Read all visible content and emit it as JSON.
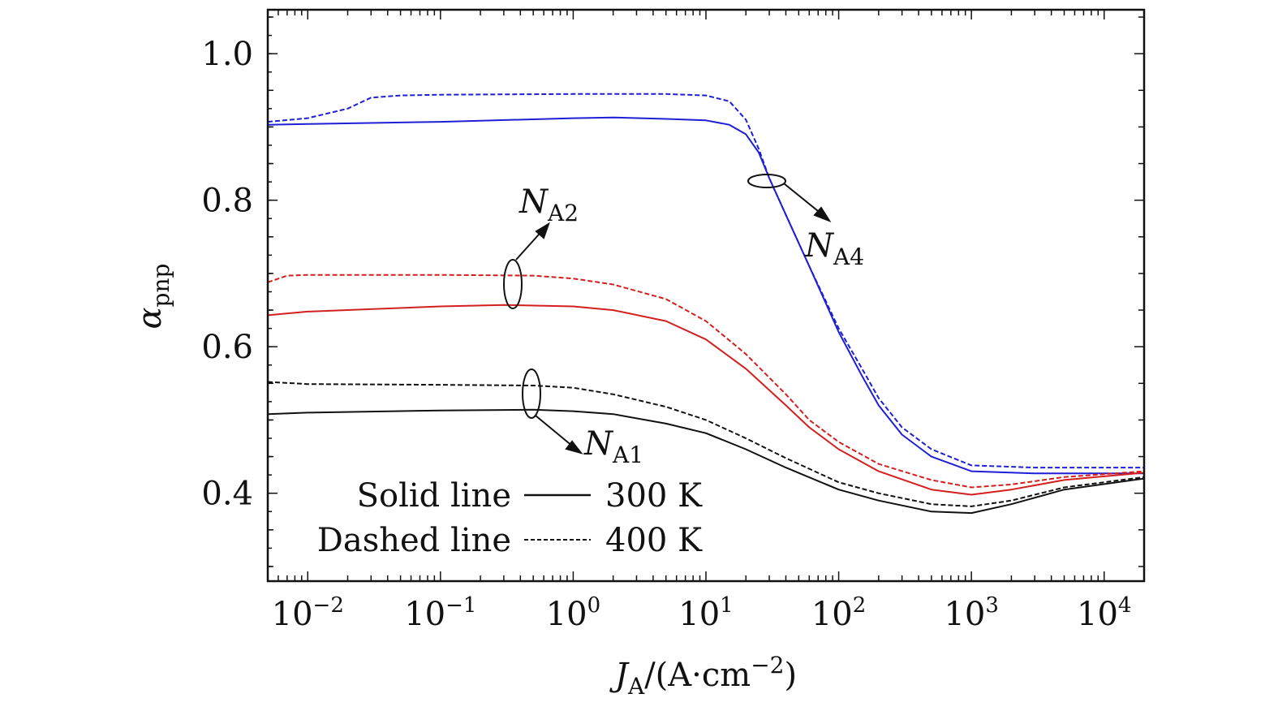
{
  "chart_data": {
    "type": "line",
    "x_scale": "log",
    "xlim": [
      0.005,
      20000
    ],
    "ylim": [
      0.28,
      1.06
    ],
    "x_ticks": [
      {
        "base": "10",
        "exp": "−2",
        "value": 0.01
      },
      {
        "base": "10",
        "exp": "−1",
        "value": 0.1
      },
      {
        "base": "10",
        "exp": "0",
        "value": 1
      },
      {
        "base": "10",
        "exp": "1",
        "value": 10
      },
      {
        "base": "10",
        "exp": "2",
        "value": 100
      },
      {
        "base": "10",
        "exp": "3",
        "value": 1000
      },
      {
        "base": "10",
        "exp": "4",
        "value": 10000
      }
    ],
    "y_ticks": [
      {
        "label": "0.4",
        "value": 0.4
      },
      {
        "label": "0.6",
        "value": 0.6
      },
      {
        "label": "0.8",
        "value": 0.8
      },
      {
        "label": "1.0",
        "value": 1.0
      }
    ],
    "xlabel": {
      "main": "J",
      "sub": "A",
      "rest": "/(A·cm",
      "sup": "−2",
      "close": ")"
    },
    "ylabel": {
      "main": "α",
      "sub": "pnp"
    },
    "grid": false,
    "series": [
      {
        "group": "NA4",
        "temperature": "300 K",
        "style": "solid",
        "color": "#1f1fd6",
        "points": [
          [
            0.005,
            0.903
          ],
          [
            0.01,
            0.904
          ],
          [
            0.1,
            0.907
          ],
          [
            1,
            0.912
          ],
          [
            2,
            0.913
          ],
          [
            5,
            0.911
          ],
          [
            10,
            0.909
          ],
          [
            15,
            0.903
          ],
          [
            20,
            0.89
          ],
          [
            25,
            0.865
          ],
          [
            30,
            0.83
          ],
          [
            40,
            0.78
          ],
          [
            60,
            0.71
          ],
          [
            100,
            0.62
          ],
          [
            150,
            0.56
          ],
          [
            200,
            0.52
          ],
          [
            300,
            0.48
          ],
          [
            500,
            0.45
          ],
          [
            1000,
            0.43
          ],
          [
            3000,
            0.427
          ],
          [
            20000,
            0.427
          ]
        ]
      },
      {
        "group": "NA4",
        "temperature": "400 K",
        "style": "dashed",
        "color": "#1f1fd6",
        "points": [
          [
            0.005,
            0.907
          ],
          [
            0.01,
            0.912
          ],
          [
            0.02,
            0.925
          ],
          [
            0.03,
            0.94
          ],
          [
            0.05,
            0.943
          ],
          [
            0.1,
            0.944
          ],
          [
            1,
            0.945
          ],
          [
            5,
            0.945
          ],
          [
            10,
            0.943
          ],
          [
            15,
            0.935
          ],
          [
            20,
            0.91
          ],
          [
            25,
            0.87
          ],
          [
            30,
            0.83
          ],
          [
            40,
            0.78
          ],
          [
            60,
            0.71
          ],
          [
            100,
            0.625
          ],
          [
            150,
            0.57
          ],
          [
            200,
            0.53
          ],
          [
            300,
            0.49
          ],
          [
            500,
            0.46
          ],
          [
            1000,
            0.438
          ],
          [
            3000,
            0.435
          ],
          [
            20000,
            0.435
          ]
        ]
      },
      {
        "group": "NA2",
        "temperature": "300 K",
        "style": "solid",
        "color": "#d41f1f",
        "points": [
          [
            0.005,
            0.643
          ],
          [
            0.01,
            0.648
          ],
          [
            0.1,
            0.655
          ],
          [
            0.3,
            0.657
          ],
          [
            1,
            0.655
          ],
          [
            2,
            0.65
          ],
          [
            5,
            0.635
          ],
          [
            10,
            0.61
          ],
          [
            20,
            0.57
          ],
          [
            40,
            0.52
          ],
          [
            60,
            0.49
          ],
          [
            100,
            0.46
          ],
          [
            200,
            0.43
          ],
          [
            500,
            0.405
          ],
          [
            1000,
            0.398
          ],
          [
            2000,
            0.405
          ],
          [
            5000,
            0.418
          ],
          [
            20000,
            0.428
          ]
        ]
      },
      {
        "group": "NA2",
        "temperature": "400 K",
        "style": "dashed",
        "color": "#d41f1f",
        "points": [
          [
            0.005,
            0.688
          ],
          [
            0.007,
            0.697
          ],
          [
            0.01,
            0.698
          ],
          [
            0.1,
            0.698
          ],
          [
            0.5,
            0.697
          ],
          [
            1,
            0.693
          ],
          [
            2,
            0.685
          ],
          [
            5,
            0.665
          ],
          [
            10,
            0.635
          ],
          [
            20,
            0.59
          ],
          [
            40,
            0.535
          ],
          [
            60,
            0.5
          ],
          [
            100,
            0.47
          ],
          [
            200,
            0.44
          ],
          [
            500,
            0.418
          ],
          [
            1000,
            0.408
          ],
          [
            2000,
            0.412
          ],
          [
            5000,
            0.422
          ],
          [
            20000,
            0.43
          ]
        ]
      },
      {
        "group": "NA1",
        "temperature": "300 K",
        "style": "solid",
        "color": "#111111",
        "points": [
          [
            0.005,
            0.508
          ],
          [
            0.01,
            0.51
          ],
          [
            0.1,
            0.513
          ],
          [
            0.5,
            0.514
          ],
          [
            1,
            0.512
          ],
          [
            2,
            0.508
          ],
          [
            5,
            0.495
          ],
          [
            10,
            0.482
          ],
          [
            20,
            0.46
          ],
          [
            40,
            0.435
          ],
          [
            100,
            0.405
          ],
          [
            200,
            0.39
          ],
          [
            500,
            0.375
          ],
          [
            1000,
            0.373
          ],
          [
            2000,
            0.385
          ],
          [
            5000,
            0.405
          ],
          [
            20000,
            0.42
          ]
        ]
      },
      {
        "group": "NA1",
        "temperature": "400 K",
        "style": "dashed",
        "color": "#111111",
        "points": [
          [
            0.005,
            0.552
          ],
          [
            0.01,
            0.549
          ],
          [
            0.1,
            0.548
          ],
          [
            0.5,
            0.547
          ],
          [
            1,
            0.544
          ],
          [
            2,
            0.535
          ],
          [
            5,
            0.518
          ],
          [
            10,
            0.5
          ],
          [
            20,
            0.475
          ],
          [
            40,
            0.448
          ],
          [
            100,
            0.415
          ],
          [
            200,
            0.4
          ],
          [
            500,
            0.385
          ],
          [
            1000,
            0.382
          ],
          [
            2000,
            0.39
          ],
          [
            5000,
            0.408
          ],
          [
            20000,
            0.422
          ]
        ]
      }
    ],
    "annotations": [
      {
        "id": "na1",
        "main": "N",
        "sub": "A1"
      },
      {
        "id": "na2",
        "main": "N",
        "sub": "A2"
      },
      {
        "id": "na4",
        "main": "N",
        "sub": "A4"
      }
    ],
    "legend": {
      "placement": "bottom-left",
      "entries": [
        {
          "label": "Solid line",
          "value": "300 K",
          "style": "solid"
        },
        {
          "label": "Dashed line",
          "value": "400 K",
          "style": "dashed"
        }
      ]
    }
  }
}
